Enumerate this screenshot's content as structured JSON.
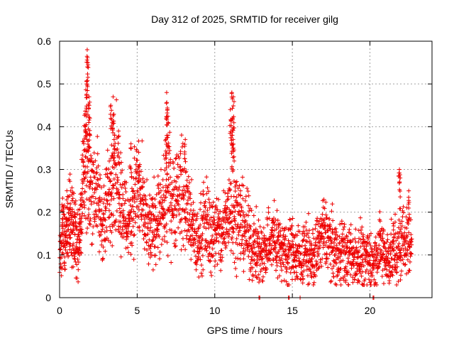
{
  "chart_data": {
    "type": "scatter",
    "title": "Day 312 of 2025, SRMTID for receiver gilg",
    "xlabel": "GPS time / hours",
    "ylabel": "SRMTID / TECUs",
    "xlim": [
      0,
      24
    ],
    "ylim": [
      0,
      0.6
    ],
    "x_ticks": [
      0,
      5,
      10,
      15,
      20
    ],
    "x_tick_labels": [
      "0",
      "5",
      "10",
      "15",
      "20"
    ],
    "y_ticks": [
      0,
      0.1,
      0.2,
      0.3,
      0.4,
      0.5,
      0.6
    ],
    "y_tick_labels": [
      "0",
      "0.1",
      "0.2",
      "0.3",
      "0.4",
      "0.5",
      "0.6"
    ],
    "grid": true,
    "marker": "+",
    "series": [
      {
        "name": "SRMTID",
        "color": "#ee0000",
        "anchors": [
          [
            0.0,
            0.1
          ],
          [
            0.2,
            0.16
          ],
          [
            0.4,
            0.13
          ],
          [
            0.6,
            0.19
          ],
          [
            0.8,
            0.17
          ],
          [
            1.0,
            0.15
          ],
          [
            1.2,
            0.12
          ],
          [
            1.4,
            0.21
          ],
          [
            1.6,
            0.32
          ],
          [
            1.8,
            0.3
          ],
          [
            2.0,
            0.27
          ],
          [
            2.3,
            0.26
          ],
          [
            2.6,
            0.2
          ],
          [
            2.9,
            0.17
          ],
          [
            3.2,
            0.25
          ],
          [
            3.5,
            0.3
          ],
          [
            3.8,
            0.27
          ],
          [
            4.1,
            0.21
          ],
          [
            4.4,
            0.17
          ],
          [
            4.7,
            0.22
          ],
          [
            5.0,
            0.26
          ],
          [
            5.3,
            0.22
          ],
          [
            5.6,
            0.16
          ],
          [
            5.9,
            0.15
          ],
          [
            6.2,
            0.19
          ],
          [
            6.5,
            0.18
          ],
          [
            6.8,
            0.22
          ],
          [
            7.1,
            0.25
          ],
          [
            7.4,
            0.23
          ],
          [
            7.7,
            0.26
          ],
          [
            8.0,
            0.24
          ],
          [
            8.3,
            0.2
          ],
          [
            8.6,
            0.15
          ],
          [
            8.9,
            0.12
          ],
          [
            9.2,
            0.16
          ],
          [
            9.5,
            0.18
          ],
          [
            9.8,
            0.14
          ],
          [
            10.1,
            0.17
          ],
          [
            10.4,
            0.13
          ],
          [
            10.7,
            0.18
          ],
          [
            11.0,
            0.22
          ],
          [
            11.3,
            0.2
          ],
          [
            11.6,
            0.18
          ],
          [
            11.9,
            0.17
          ],
          [
            12.2,
            0.14
          ],
          [
            12.5,
            0.12
          ],
          [
            12.8,
            0.11
          ],
          [
            13.1,
            0.1
          ],
          [
            13.4,
            0.13
          ],
          [
            13.7,
            0.14
          ],
          [
            14.0,
            0.13
          ],
          [
            14.3,
            0.12
          ],
          [
            14.6,
            0.1
          ],
          [
            14.9,
            0.12
          ],
          [
            15.2,
            0.1
          ],
          [
            15.5,
            0.09
          ],
          [
            15.8,
            0.11
          ],
          [
            16.1,
            0.1
          ],
          [
            16.4,
            0.09
          ],
          [
            16.7,
            0.13
          ],
          [
            17.0,
            0.15
          ],
          [
            17.3,
            0.14
          ],
          [
            17.6,
            0.12
          ],
          [
            17.9,
            0.1
          ],
          [
            18.2,
            0.12
          ],
          [
            18.5,
            0.09
          ],
          [
            18.8,
            0.1
          ],
          [
            19.1,
            0.09
          ],
          [
            19.4,
            0.11
          ],
          [
            19.7,
            0.08
          ],
          [
            20.0,
            0.09
          ],
          [
            20.3,
            0.08
          ],
          [
            20.6,
            0.12
          ],
          [
            20.9,
            0.1
          ],
          [
            21.2,
            0.09
          ],
          [
            21.5,
            0.11
          ],
          [
            21.8,
            0.1
          ],
          [
            22.1,
            0.14
          ],
          [
            22.4,
            0.13
          ],
          [
            22.7,
            0.12
          ]
        ],
        "peaks": [
          [
            1.65,
            0.43
          ],
          [
            1.75,
            0.5
          ],
          [
            1.78,
            0.58
          ],
          [
            1.82,
            0.55
          ],
          [
            1.9,
            0.47
          ],
          [
            1.95,
            0.42
          ],
          [
            3.3,
            0.45
          ],
          [
            3.4,
            0.41
          ],
          [
            3.45,
            0.47
          ],
          [
            3.55,
            0.38
          ],
          [
            3.8,
            0.39
          ],
          [
            4.6,
            0.36
          ],
          [
            5.1,
            0.34
          ],
          [
            6.9,
            0.48
          ],
          [
            6.95,
            0.44
          ],
          [
            7.0,
            0.41
          ],
          [
            6.85,
            0.37
          ],
          [
            8.1,
            0.37
          ],
          [
            11.0,
            0.44
          ],
          [
            11.1,
            0.48
          ],
          [
            11.2,
            0.47
          ],
          [
            11.15,
            0.42
          ],
          [
            11.1,
            0.38
          ],
          [
            11.2,
            0.35
          ],
          [
            21.9,
            0.3
          ],
          [
            21.95,
            0.28
          ],
          [
            22.5,
            0.25
          ]
        ],
        "zero_values": [
          12.85,
          12.9,
          14.75,
          14.8,
          15.5,
          20.2,
          20.25
        ]
      }
    ]
  }
}
